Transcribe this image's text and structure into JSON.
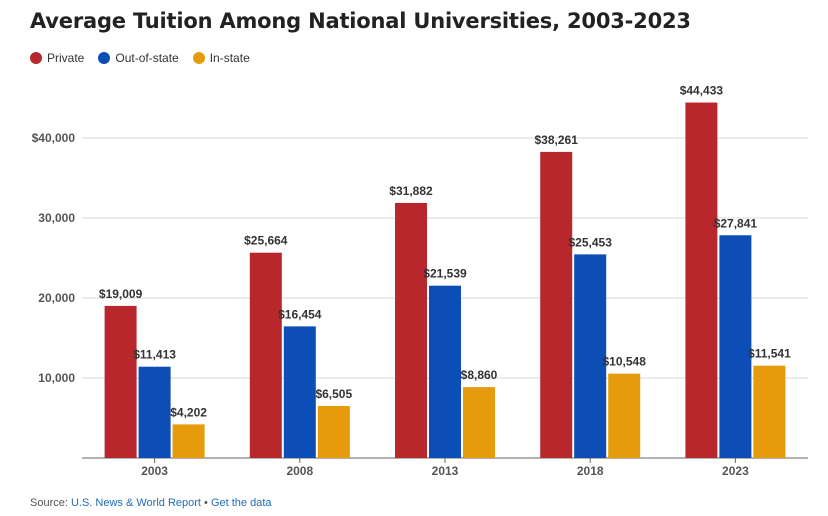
{
  "title": "Average Tuition Among National Universities, 2003-2023",
  "legend": [
    {
      "label": "Private",
      "color": "#b8272c"
    },
    {
      "label": "Out-of-state",
      "color": "#0c4eb5"
    },
    {
      "label": "In-state",
      "color": "#e59b0b"
    }
  ],
  "source": {
    "prefix": "Source: ",
    "link_text": "U.S. News & World Report",
    "separator": " • ",
    "data_link": "Get the data"
  },
  "chart_data": {
    "type": "bar",
    "title": "Average Tuition Among National Universities, 2003-2023",
    "categories": [
      "2003",
      "2008",
      "2013",
      "2018",
      "2023"
    ],
    "series": [
      {
        "name": "Private",
        "color": "#b8272c",
        "values": [
          19009,
          25664,
          31882,
          38261,
          44433
        ],
        "labels": [
          "$19,009",
          "$25,664",
          "$31,882",
          "$38,261",
          "$44,433"
        ]
      },
      {
        "name": "Out-of-state",
        "color": "#0c4eb5",
        "values": [
          11413,
          16454,
          21539,
          25453,
          27841
        ],
        "labels": [
          "$11,413",
          "$16,454",
          "$21,539",
          "$25,453",
          "$27,841"
        ]
      },
      {
        "name": "In-state",
        "color": "#e59b0b",
        "values": [
          4202,
          6505,
          8860,
          10548,
          11541
        ],
        "labels": [
          "$4,202",
          "$6,505",
          "$8,860",
          "$10,548",
          "$11,541"
        ]
      }
    ],
    "ylim": [
      0,
      40000
    ],
    "yticks": [
      10000,
      20000,
      30000,
      40000
    ],
    "ytick_labels": [
      "10,000",
      "20,000",
      "30,000",
      "$40,000"
    ],
    "grid": true,
    "legend_position": "top-left"
  }
}
